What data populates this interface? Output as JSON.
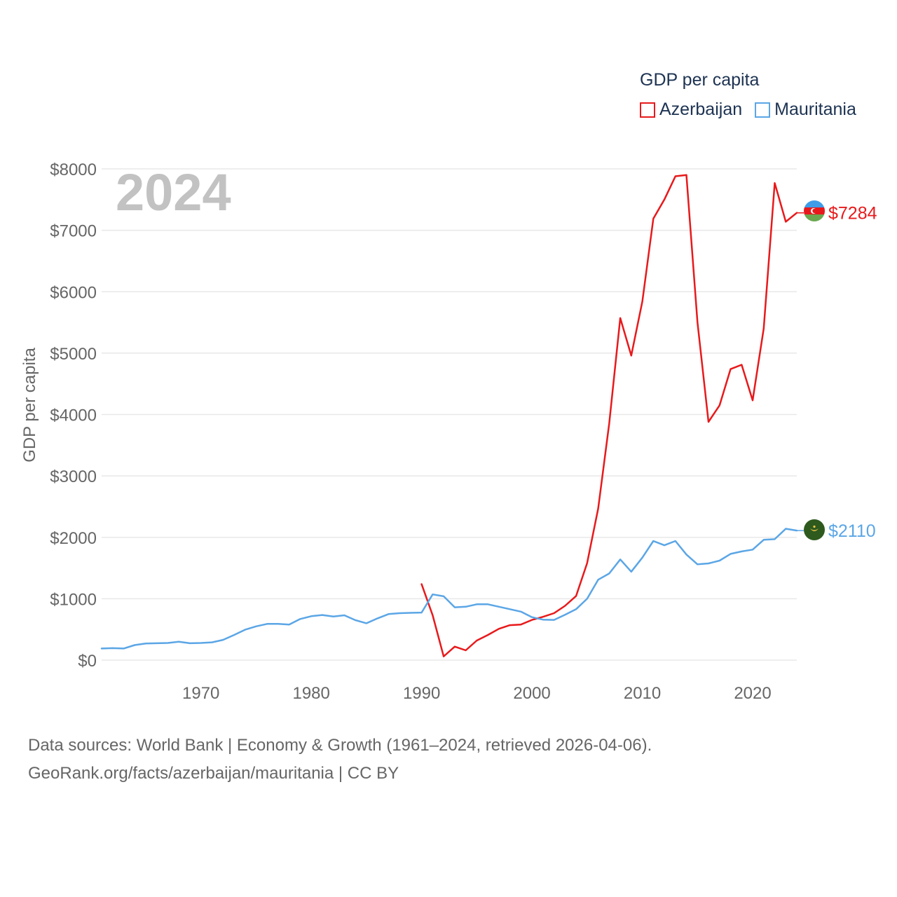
{
  "legend": {
    "title": "GDP per capita",
    "items": [
      {
        "label": "Azerbaijan",
        "color": "#e8191b"
      },
      {
        "label": "Mauritania",
        "color": "#5ba6e6"
      }
    ]
  },
  "year_label": "2024",
  "footer": {
    "line1": "Data sources: World Bank | Economy & Growth (1961–2024, retrieved 2026-04-06).",
    "line2": "GeoRank.org/facts/azerbaijan/mauritania | CC BY"
  },
  "chart_data": {
    "type": "line",
    "title": "GDP per capita",
    "xlabel": "",
    "ylabel": "GDP per capita",
    "xlim": [
      1961,
      2024
    ],
    "ylim": [
      0,
      8000
    ],
    "x_ticks": [
      1970,
      1980,
      1990,
      2000,
      2010,
      2020
    ],
    "y_ticks": [
      0,
      1000,
      2000,
      3000,
      4000,
      5000,
      6000,
      7000,
      8000
    ],
    "y_tick_labels": [
      "$0",
      "$1000",
      "$2000",
      "$3000",
      "$4000",
      "$5000",
      "$6000",
      "$7000",
      "$8000"
    ],
    "grid": true,
    "series": [
      {
        "name": "Azerbaijan",
        "color": "#e8191b",
        "end_label": "$7284",
        "flag": "azerbaijan-flag",
        "x": [
          1990,
          1991,
          1992,
          1993,
          1994,
          1995,
          1996,
          1997,
          1998,
          1999,
          2000,
          2001,
          2002,
          2003,
          2004,
          2005,
          2006,
          2007,
          2008,
          2009,
          2010,
          2011,
          2012,
          2013,
          2014,
          2015,
          2016,
          2017,
          2018,
          2019,
          2020,
          2021,
          2022,
          2023,
          2024
        ],
        "values": [
          1237,
          730,
          60,
          220,
          160,
          320,
          410,
          510,
          570,
          580,
          655,
          705,
          765,
          885,
          1045,
          1580,
          2470,
          3850,
          5570,
          4960,
          5840,
          7190,
          7500,
          7880,
          7900,
          5500,
          3880,
          4150,
          4740,
          4810,
          4230,
          5400,
          7770,
          7140,
          7284
        ]
      },
      {
        "name": "Mauritania",
        "color": "#5ba6e6",
        "end_label": "$2110",
        "flag": "mauritania-flag",
        "x": [
          1961,
          1962,
          1963,
          1964,
          1965,
          1966,
          1967,
          1968,
          1969,
          1970,
          1971,
          1972,
          1973,
          1974,
          1975,
          1976,
          1977,
          1978,
          1979,
          1980,
          1981,
          1982,
          1983,
          1984,
          1985,
          1986,
          1987,
          1988,
          1989,
          1990,
          1991,
          1992,
          1993,
          1994,
          1995,
          1996,
          1997,
          1998,
          1999,
          2000,
          2001,
          2002,
          2003,
          2004,
          2005,
          2006,
          2007,
          2008,
          2009,
          2010,
          2011,
          2012,
          2013,
          2014,
          2015,
          2016,
          2017,
          2018,
          2019,
          2020,
          2021,
          2022,
          2023,
          2024
        ],
        "values": [
          190,
          195,
          190,
          245,
          270,
          275,
          280,
          300,
          275,
          280,
          290,
          330,
          410,
          495,
          550,
          590,
          590,
          580,
          670,
          715,
          735,
          710,
          730,
          650,
          600,
          680,
          750,
          765,
          770,
          775,
          1070,
          1040,
          860,
          870,
          910,
          910,
          870,
          830,
          790,
          700,
          660,
          655,
          740,
          830,
          1000,
          1310,
          1410,
          1640,
          1440,
          1670,
          1940,
          1870,
          1940,
          1720,
          1560,
          1575,
          1620,
          1730,
          1770,
          1800,
          1960,
          1970,
          2140,
          2110
        ]
      }
    ]
  }
}
